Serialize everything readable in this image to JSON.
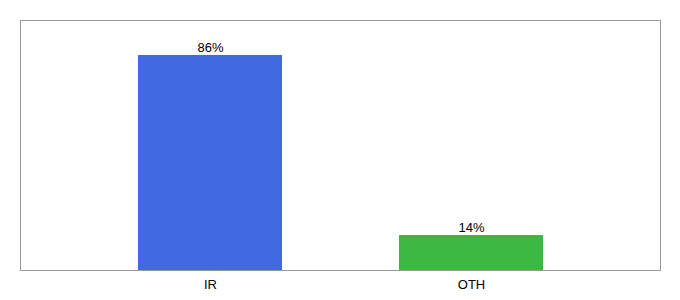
{
  "chart_data": {
    "type": "bar",
    "categories": [
      "IR",
      "OTH"
    ],
    "values": [
      86,
      14
    ],
    "value_labels": [
      "86%",
      "14%"
    ],
    "colors": [
      "#4169e1",
      "#3cb843"
    ],
    "ylim": [
      0,
      100
    ],
    "yticks": [],
    "data_labels": true,
    "tick_labels": "x"
  }
}
